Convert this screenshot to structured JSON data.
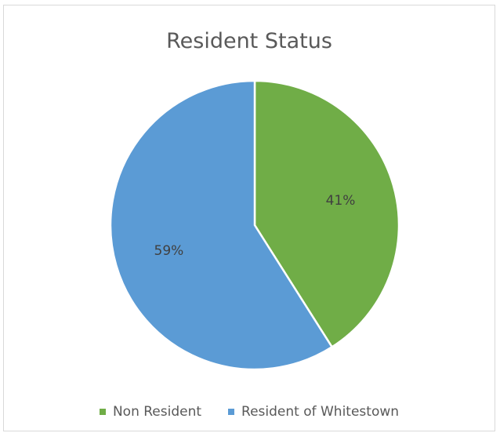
{
  "chart_data": {
    "type": "pie",
    "title": "Resident Status",
    "slices": [
      {
        "name": "Non Resident",
        "value": 41,
        "label": "41%",
        "color": "#70ad47"
      },
      {
        "name": "Resident of Whitestown",
        "value": 59,
        "label": "59%",
        "color": "#5b9bd5"
      }
    ],
    "legend_position": "bottom",
    "start_angle": "12 o'clock",
    "direction": "clockwise"
  }
}
